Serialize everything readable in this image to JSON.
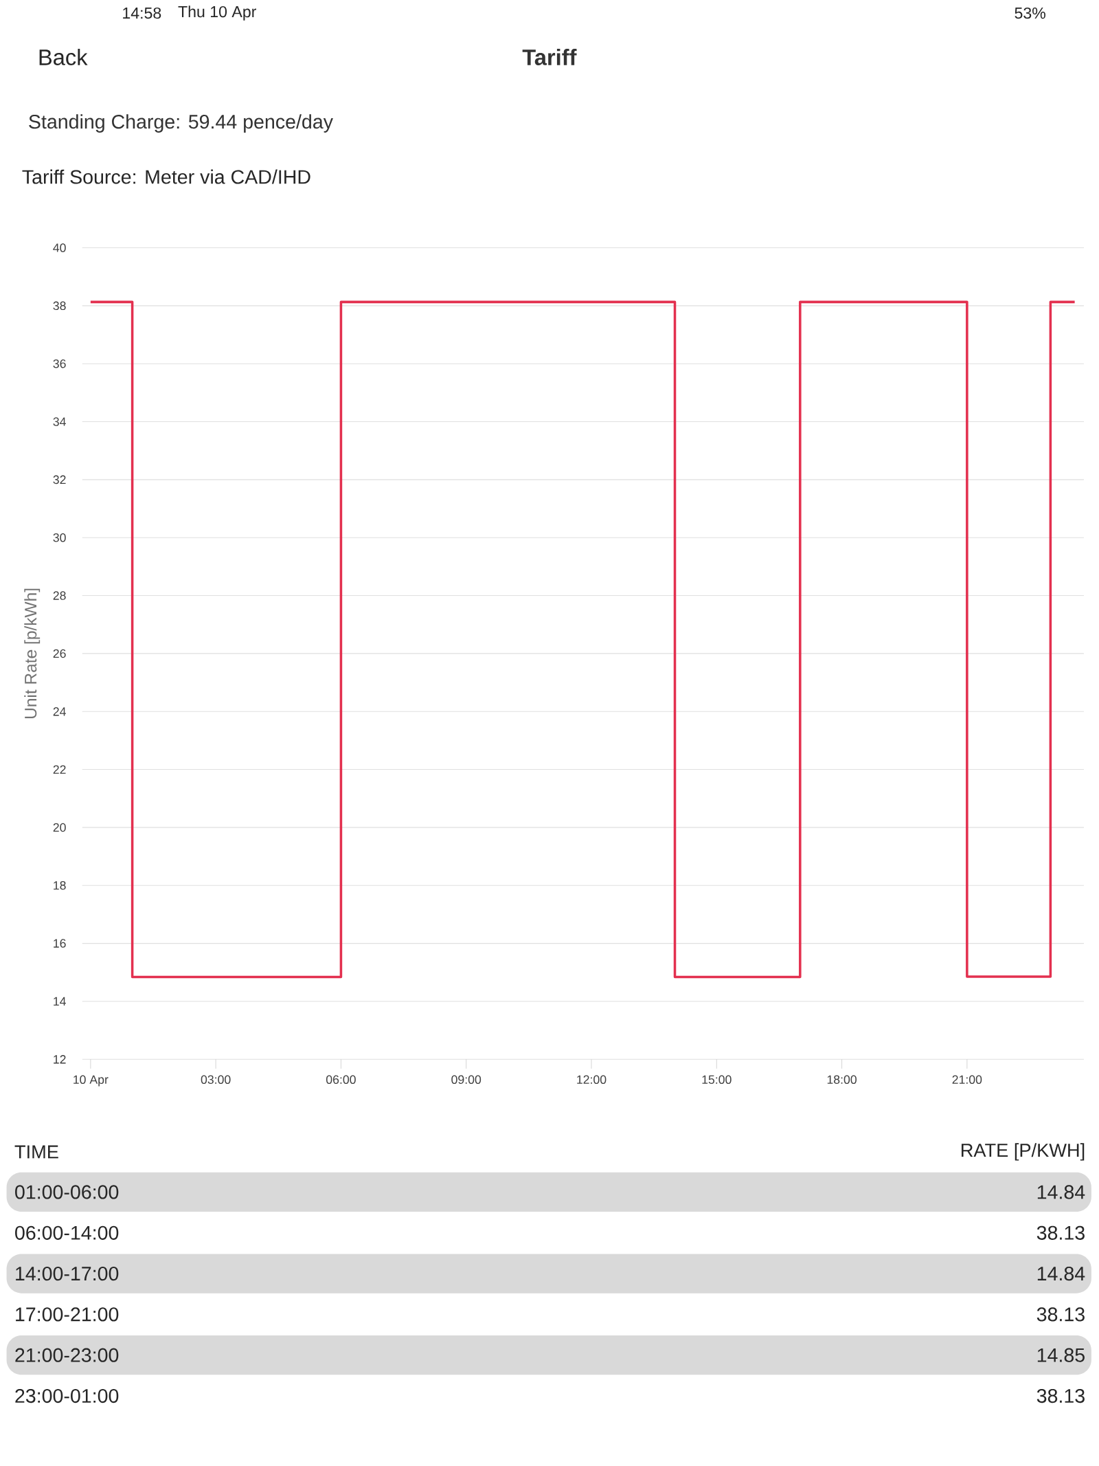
{
  "chart_data": {
    "type": "step",
    "title": "Tariff",
    "subtitle": "Standing Charge: 59.44 pence/day",
    "ylabel": "Unit Rate [p/kWh]",
    "x": [
      0,
      1,
      6,
      14,
      17,
      21,
      23,
      23.58
    ],
    "series": [
      {
        "color": "#e3304f",
        "values": [
          38.13,
          14.84,
          38.13,
          14.84,
          38.13,
          14.85,
          38.13,
          38.13
        ]
      }
    ],
    "xlim": [
      -0.2,
      23.8
    ],
    "xticks": [
      {
        "value": 0,
        "label": "10 Apr"
      },
      {
        "value": 3,
        "label": "03:00"
      },
      {
        "value": 6,
        "label": "06:00"
      },
      {
        "value": 9,
        "label": "09:00"
      },
      {
        "value": 12,
        "label": "12:00"
      },
      {
        "value": 15,
        "label": "15:00"
      },
      {
        "value": 18,
        "label": "18:00"
      },
      {
        "value": 21,
        "label": "21:00"
      }
    ],
    "ylim": [
      12,
      40
    ],
    "yticks": [
      12,
      14,
      16,
      18,
      20,
      22,
      24,
      26,
      28,
      30,
      32,
      34,
      36,
      38,
      40
    ],
    "grid": "y",
    "marker": "none",
    "line_style": "solid",
    "annotations": [
      "14:58",
      "Thu 10 Apr",
      "53%",
      "Back",
      "Tariff Source: Meter via CAD/IHD",
      "TIME",
      "RATE [P/KWH]",
      "01:00-06:00",
      "14.84",
      "06:00-14:00",
      "38.13",
      "14:00-17:00",
      "14.84",
      "17:00-21:00",
      "38.13",
      "21:00-23:00",
      "14.85",
      "23:00-01:00",
      "38.13"
    ]
  }
}
